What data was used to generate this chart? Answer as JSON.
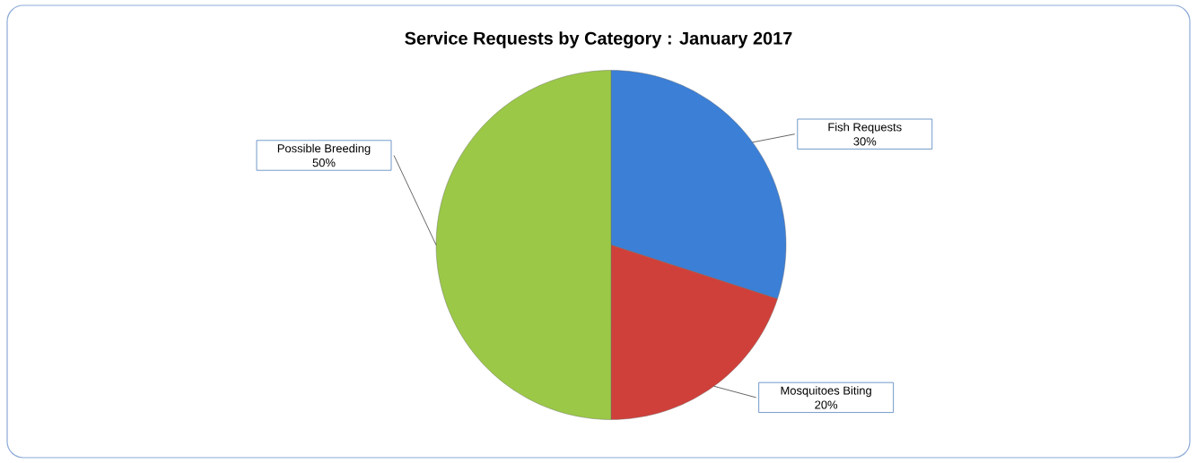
{
  "chart_data": {
    "type": "pie",
    "title": "Service Requests by Category :  January 2017",
    "categories": [
      "Fish Requests",
      "Mosquitoes Biting",
      "Possible Breeding"
    ],
    "values": [
      30,
      20,
      50
    ],
    "colors": [
      "#3c7fd6",
      "#d0403a",
      "#9bc847"
    ],
    "value_labels": [
      "30%",
      "20%",
      "50%"
    ]
  }
}
